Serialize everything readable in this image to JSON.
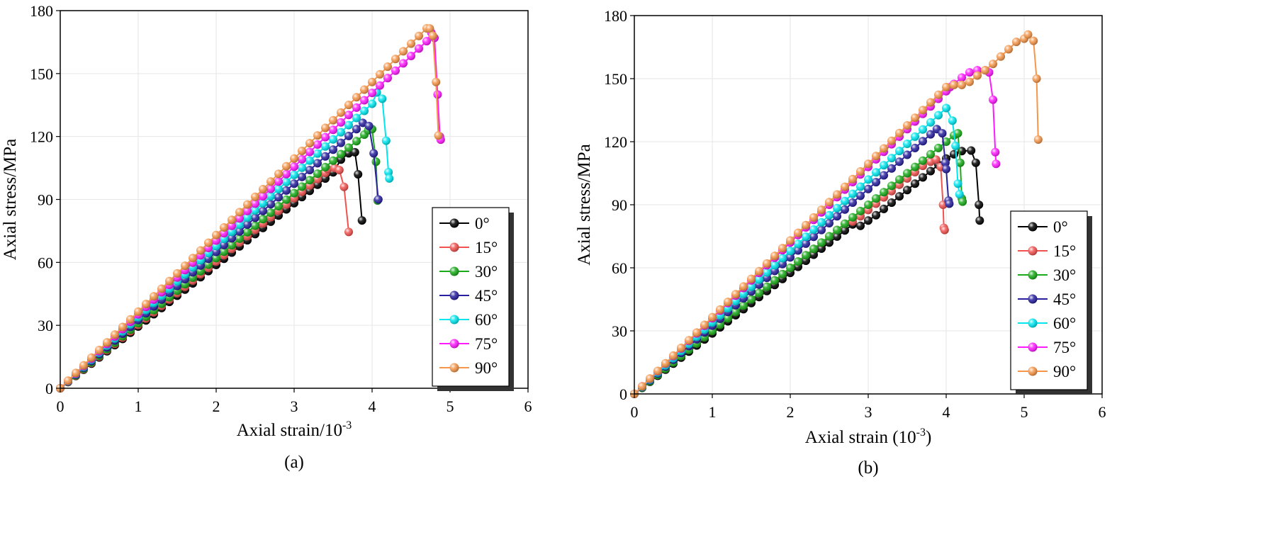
{
  "figure": {
    "panels": [
      "(a)",
      "(b)"
    ]
  },
  "chart_data": [
    {
      "type": "line",
      "panel": "(a)",
      "title": "",
      "caption": "(a)",
      "xlabel": "Axial strain/10",
      "xlabel_sup": "-3",
      "ylabel": "Axial stress/MPa",
      "xlim": [
        0,
        6
      ],
      "ylim": [
        0,
        180
      ],
      "xticks": [
        0,
        1,
        2,
        3,
        4,
        5,
        6
      ],
      "yticks": [
        0,
        30,
        60,
        90,
        120,
        150,
        180
      ],
      "grid": true,
      "legend_position": "lower-right",
      "series": [
        {
          "name": "0°",
          "color": "#000000",
          "linear": {
            "slope": 29.4,
            "end": 3.52,
            "step": 0.1
          },
          "points": [
            [
              3.6,
              109
            ],
            [
              3.7,
              112
            ],
            [
              3.78,
              112.5
            ],
            [
              3.82,
              102
            ],
            [
              3.87,
              80
            ]
          ]
        },
        {
          "name": "15°",
          "color": "#f0524f",
          "linear": {
            "slope": 30.2,
            "end": 3.35,
            "step": 0.1
          },
          "points": [
            [
              3.43,
              104.5
            ],
            [
              3.52,
              105
            ],
            [
              3.58,
              104
            ],
            [
              3.64,
              96
            ],
            [
              3.7,
              74.5
            ]
          ]
        },
        {
          "name": "30°",
          "color": "#1aaa1a",
          "linear": {
            "slope": 31.0,
            "end": 3.9,
            "step": 0.1
          },
          "points": [
            [
              3.95,
              123
            ],
            [
              4.0,
              123.5
            ],
            [
              4.05,
              108
            ],
            [
              4.07,
              89.5
            ]
          ]
        },
        {
          "name": "45°",
          "color": "#28209e",
          "linear": {
            "slope": 32.5,
            "end": 3.8,
            "step": 0.1
          },
          "points": [
            [
              3.88,
              126.5
            ],
            [
              3.96,
              125
            ],
            [
              4.02,
              112
            ],
            [
              4.08,
              90
            ]
          ]
        },
        {
          "name": "60°",
          "color": "#00e5ee",
          "linear": {
            "slope": 33.9,
            "end": 4.0,
            "step": 0.1
          },
          "points": [
            [
              4.06,
              141
            ],
            [
              4.13,
              138
            ],
            [
              4.18,
              118
            ],
            [
              4.21,
              103
            ],
            [
              4.22,
              100
            ]
          ]
        },
        {
          "name": "75°",
          "color": "#ff1aff",
          "linear": {
            "slope": 35.2,
            "end": 4.7,
            "step": 0.1
          },
          "points": [
            [
              4.76,
              169.5
            ],
            [
              4.8,
              167
            ],
            [
              4.84,
              140
            ],
            [
              4.87,
              120
            ],
            [
              4.88,
              118.5
            ]
          ]
        },
        {
          "name": "90°",
          "color": "#f5964a",
          "linear": {
            "slope": 36.5,
            "end": 4.7,
            "step": 0.1
          },
          "points": [
            [
              4.74,
              171.5
            ],
            [
              4.78,
              168
            ],
            [
              4.82,
              146
            ],
            [
              4.85,
              120.5
            ]
          ]
        }
      ]
    },
    {
      "type": "line",
      "panel": "(b)",
      "title": "",
      "caption": "(b)",
      "xlabel": "Axial strain (10",
      "xlabel_sup": "-3",
      "xlabel_after": ")",
      "ylabel": "Axial stress/MPa",
      "xlim": [
        0,
        6
      ],
      "ylim": [
        0,
        180
      ],
      "xticks": [
        0,
        1,
        2,
        3,
        4,
        5,
        6
      ],
      "yticks": [
        0,
        30,
        60,
        90,
        120,
        150,
        180
      ],
      "grid": true,
      "legend_position": "lower-right",
      "series": [
        {
          "name": "0°",
          "color": "#000000",
          "linear": {
            "slope": 28.8,
            "end": 2.8,
            "step": 0.1
          },
          "points": [
            [
              2.9,
              80
            ],
            [
              3.0,
              82.5
            ],
            [
              3.1,
              85
            ],
            [
              3.2,
              88
            ],
            [
              3.3,
              91
            ],
            [
              3.4,
              94
            ],
            [
              3.5,
              97
            ],
            [
              3.6,
              100
            ],
            [
              3.7,
              103
            ],
            [
              3.8,
              106
            ],
            [
              3.9,
              109
            ],
            [
              4.0,
              112
            ],
            [
              4.1,
              114
            ],
            [
              4.2,
              115.5
            ],
            [
              4.32,
              115.8
            ],
            [
              4.38,
              110
            ],
            [
              4.42,
              90
            ],
            [
              4.43,
              82.5
            ]
          ]
        },
        {
          "name": "15°",
          "color": "#f0524f",
          "linear": {
            "slope": 30.0,
            "end": 2.7,
            "step": 0.1
          },
          "points": [
            [
              2.8,
              82
            ],
            [
              2.9,
              84.5
            ],
            [
              3.0,
              87.5
            ],
            [
              3.1,
              90.5
            ],
            [
              3.2,
              93.5
            ],
            [
              3.3,
              96.5
            ],
            [
              3.4,
              99.5
            ],
            [
              3.5,
              102.5
            ],
            [
              3.6,
              105.5
            ],
            [
              3.7,
              108.5
            ],
            [
              3.8,
              110.5
            ],
            [
              3.87,
              111.5
            ],
            [
              3.93,
              108
            ],
            [
              3.96,
              90
            ],
            [
              3.97,
              79
            ],
            [
              3.98,
              78
            ]
          ]
        },
        {
          "name": "30°",
          "color": "#1aaa1a",
          "linear": {
            "slope": 30.0,
            "end": 4.1,
            "step": 0.1
          },
          "points": [
            [
              4.15,
              124
            ],
            [
              4.18,
              110
            ],
            [
              4.2,
              93
            ],
            [
              4.21,
              91.5
            ]
          ]
        },
        {
          "name": "45°",
          "color": "#28209e",
          "linear": {
            "slope": 32.5,
            "end": 3.8,
            "step": 0.1
          },
          "points": [
            [
              3.88,
              126
            ],
            [
              3.95,
              124
            ],
            [
              3.99,
              110
            ],
            [
              4.0,
              107
            ],
            [
              4.03,
              92
            ],
            [
              4.04,
              90.5
            ]
          ]
        },
        {
          "name": "60°",
          "color": "#00e5ee",
          "linear": {
            "slope": 34.0,
            "end": 4.0,
            "step": 0.1
          },
          "points": [
            [
              4.08,
              130
            ],
            [
              4.12,
              118
            ],
            [
              4.15,
              100
            ],
            [
              4.17,
              95
            ]
          ]
        },
        {
          "name": "75°",
          "color": "#ff1aff",
          "linear": {
            "slope": 36.0,
            "end": 4.0,
            "step": 0.1
          },
          "points": [
            [
              4.05,
              146
            ],
            [
              4.1,
              147.5
            ],
            [
              4.2,
              150.5
            ],
            [
              4.3,
              153
            ],
            [
              4.4,
              154
            ],
            [
              4.5,
              154
            ],
            [
              4.55,
              153
            ],
            [
              4.6,
              140
            ],
            [
              4.63,
              115
            ],
            [
              4.64,
              109.5
            ]
          ]
        },
        {
          "name": "90°",
          "color": "#f5964a",
          "linear": {
            "slope": 36.5,
            "end": 4.0,
            "step": 0.1
          },
          "points": [
            [
              4.1,
              147
            ],
            [
              4.2,
              147
            ],
            [
              4.3,
              148.5
            ],
            [
              4.4,
              151.5
            ],
            [
              4.5,
              154
            ],
            [
              4.6,
              157
            ],
            [
              4.7,
              160.5
            ],
            [
              4.8,
              164
            ],
            [
              4.9,
              167.5
            ],
            [
              5.0,
              169
            ],
            [
              5.05,
              171
            ],
            [
              5.12,
              168
            ],
            [
              5.16,
              150
            ],
            [
              5.18,
              121
            ]
          ]
        }
      ]
    }
  ]
}
